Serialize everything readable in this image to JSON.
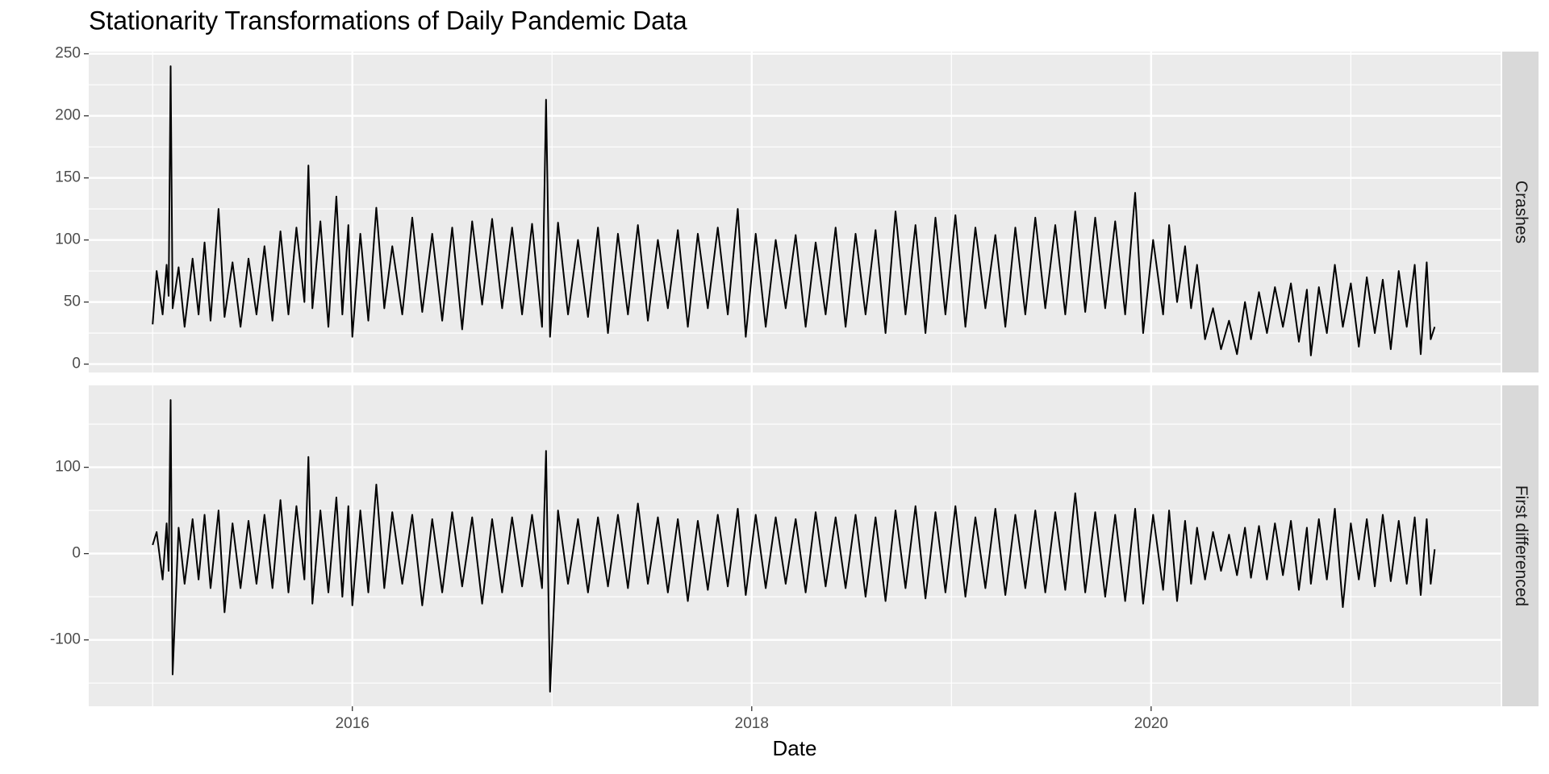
{
  "chart_data": [
    {
      "type": "line",
      "title": "Stationarity Transformations of Daily Pandemic Data",
      "facet_label": "Crashes",
      "color": "#000000",
      "grid": true,
      "xlim": [
        2014.68,
        2021.75
      ],
      "ylim": [
        -6.75,
        251.75
      ],
      "yticks": [
        0,
        50,
        100,
        150,
        200,
        250
      ],
      "minor_yticks": [
        25,
        75,
        125,
        175,
        225
      ],
      "x": [
        2015.0,
        2015.02,
        2015.05,
        2015.07,
        2015.08,
        2015.09,
        2015.1,
        2015.13,
        2015.16,
        2015.2,
        2015.23,
        2015.26,
        2015.29,
        2015.33,
        2015.36,
        2015.4,
        2015.44,
        2015.48,
        2015.52,
        2015.56,
        2015.6,
        2015.64,
        2015.68,
        2015.72,
        2015.76,
        2015.78,
        2015.8,
        2015.84,
        2015.88,
        2015.92,
        2015.95,
        2015.98,
        2016.0,
        2016.04,
        2016.08,
        2016.12,
        2016.16,
        2016.2,
        2016.25,
        2016.3,
        2016.35,
        2016.4,
        2016.45,
        2016.5,
        2016.55,
        2016.6,
        2016.65,
        2016.7,
        2016.75,
        2016.8,
        2016.85,
        2016.9,
        2016.95,
        2016.97,
        2016.99,
        2017.03,
        2017.08,
        2017.13,
        2017.18,
        2017.23,
        2017.28,
        2017.33,
        2017.38,
        2017.43,
        2017.48,
        2017.53,
        2017.58,
        2017.63,
        2017.68,
        2017.73,
        2017.78,
        2017.83,
        2017.88,
        2017.93,
        2017.97,
        2018.02,
        2018.07,
        2018.12,
        2018.17,
        2018.22,
        2018.27,
        2018.32,
        2018.37,
        2018.42,
        2018.47,
        2018.52,
        2018.57,
        2018.62,
        2018.67,
        2018.72,
        2018.77,
        2018.82,
        2018.87,
        2018.92,
        2018.97,
        2019.02,
        2019.07,
        2019.12,
        2019.17,
        2019.22,
        2019.27,
        2019.32,
        2019.37,
        2019.42,
        2019.47,
        2019.52,
        2019.57,
        2019.62,
        2019.67,
        2019.72,
        2019.77,
        2019.82,
        2019.87,
        2019.92,
        2019.96,
        2020.01,
        2020.06,
        2020.09,
        2020.13,
        2020.17,
        2020.2,
        2020.23,
        2020.27,
        2020.31,
        2020.35,
        2020.39,
        2020.43,
        2020.47,
        2020.5,
        2020.54,
        2020.58,
        2020.62,
        2020.66,
        2020.7,
        2020.74,
        2020.78,
        2020.8,
        2020.84,
        2020.88,
        2020.92,
        2020.96,
        2021.0,
        2021.04,
        2021.08,
        2021.12,
        2021.16,
        2021.2,
        2021.24,
        2021.28,
        2021.32,
        2021.35,
        2021.38,
        2021.4,
        2021.42
      ],
      "values": [
        32,
        75,
        40,
        80,
        55,
        240,
        45,
        78,
        30,
        85,
        40,
        98,
        35,
        125,
        38,
        82,
        30,
        85,
        40,
        95,
        35,
        107,
        40,
        110,
        50,
        160,
        45,
        115,
        30,
        135,
        40,
        112,
        22,
        105,
        35,
        126,
        45,
        95,
        40,
        118,
        42,
        105,
        35,
        110,
        28,
        115,
        48,
        117,
        45,
        110,
        40,
        113,
        30,
        213,
        22,
        114,
        40,
        100,
        38,
        110,
        25,
        105,
        40,
        112,
        35,
        100,
        45,
        108,
        30,
        105,
        45,
        110,
        40,
        125,
        22,
        105,
        30,
        100,
        45,
        104,
        30,
        98,
        40,
        110,
        30,
        105,
        40,
        108,
        25,
        123,
        40,
        112,
        25,
        118,
        40,
        120,
        30,
        110,
        45,
        104,
        30,
        110,
        40,
        118,
        45,
        112,
        40,
        123,
        42,
        118,
        45,
        115,
        40,
        138,
        25,
        100,
        40,
        112,
        50,
        95,
        45,
        80,
        20,
        45,
        12,
        35,
        8,
        50,
        20,
        58,
        25,
        62,
        30,
        65,
        18,
        60,
        7,
        62,
        25,
        80,
        30,
        65,
        14,
        70,
        25,
        68,
        12,
        75,
        30,
        80,
        8,
        82,
        20,
        30
      ]
    },
    {
      "type": "line",
      "facet_label": "First differenced",
      "x_label": "Date",
      "color": "#000000",
      "grid": true,
      "xlim": [
        2014.68,
        2021.75
      ],
      "xticks": [
        2016,
        2018,
        2020
      ],
      "minor_xticks": [
        2015,
        2017,
        2019,
        2021
      ],
      "ylim": [
        -176.9,
        194.9
      ],
      "yticks": [
        -100,
        0,
        100
      ],
      "minor_yticks": [
        -150,
        -50,
        50,
        150
      ],
      "x": [
        2015.0,
        2015.02,
        2015.05,
        2015.07,
        2015.08,
        2015.09,
        2015.1,
        2015.13,
        2015.16,
        2015.2,
        2015.23,
        2015.26,
        2015.29,
        2015.33,
        2015.36,
        2015.4,
        2015.44,
        2015.48,
        2015.52,
        2015.56,
        2015.6,
        2015.64,
        2015.68,
        2015.72,
        2015.76,
        2015.78,
        2015.8,
        2015.84,
        2015.88,
        2015.92,
        2015.95,
        2015.98,
        2016.0,
        2016.04,
        2016.08,
        2016.12,
        2016.16,
        2016.2,
        2016.25,
        2016.3,
        2016.35,
        2016.4,
        2016.45,
        2016.5,
        2016.55,
        2016.6,
        2016.65,
        2016.7,
        2016.75,
        2016.8,
        2016.85,
        2016.9,
        2016.95,
        2016.97,
        2016.99,
        2017.03,
        2017.08,
        2017.13,
        2017.18,
        2017.23,
        2017.28,
        2017.33,
        2017.38,
        2017.43,
        2017.48,
        2017.53,
        2017.58,
        2017.63,
        2017.68,
        2017.73,
        2017.78,
        2017.83,
        2017.88,
        2017.93,
        2017.97,
        2018.02,
        2018.07,
        2018.12,
        2018.17,
        2018.22,
        2018.27,
        2018.32,
        2018.37,
        2018.42,
        2018.47,
        2018.52,
        2018.57,
        2018.62,
        2018.67,
        2018.72,
        2018.77,
        2018.82,
        2018.87,
        2018.92,
        2018.97,
        2019.02,
        2019.07,
        2019.12,
        2019.17,
        2019.22,
        2019.27,
        2019.32,
        2019.37,
        2019.42,
        2019.47,
        2019.52,
        2019.57,
        2019.62,
        2019.67,
        2019.72,
        2019.77,
        2019.82,
        2019.87,
        2019.92,
        2019.96,
        2020.01,
        2020.06,
        2020.09,
        2020.13,
        2020.17,
        2020.2,
        2020.23,
        2020.27,
        2020.31,
        2020.35,
        2020.39,
        2020.43,
        2020.47,
        2020.5,
        2020.54,
        2020.58,
        2020.62,
        2020.66,
        2020.7,
        2020.74,
        2020.78,
        2020.8,
        2020.84,
        2020.88,
        2020.92,
        2020.96,
        2021.0,
        2021.04,
        2021.08,
        2021.12,
        2021.16,
        2021.2,
        2021.24,
        2021.28,
        2021.32,
        2021.35,
        2021.38,
        2021.4,
        2021.42
      ],
      "values": [
        10,
        25,
        -30,
        35,
        -20,
        178,
        -140,
        30,
        -35,
        40,
        -30,
        45,
        -40,
        50,
        -68,
        35,
        -40,
        38,
        -35,
        45,
        -40,
        62,
        -45,
        55,
        -30,
        112,
        -58,
        50,
        -45,
        65,
        -50,
        55,
        -60,
        50,
        -45,
        80,
        -40,
        48,
        -35,
        45,
        -60,
        40,
        -45,
        48,
        -38,
        42,
        -58,
        40,
        -45,
        42,
        -38,
        45,
        -40,
        119,
        -160,
        50,
        -35,
        40,
        -45,
        42,
        -38,
        45,
        -40,
        58,
        -35,
        42,
        -45,
        40,
        -55,
        38,
        -42,
        45,
        -38,
        52,
        -48,
        45,
        -40,
        42,
        -35,
        40,
        -45,
        48,
        -38,
        42,
        -40,
        45,
        -50,
        42,
        -55,
        50,
        -40,
        55,
        -52,
        48,
        -45,
        55,
        -50,
        42,
        -40,
        52,
        -48,
        45,
        -40,
        50,
        -45,
        48,
        -42,
        70,
        -45,
        48,
        -50,
        45,
        -55,
        52,
        -58,
        45,
        -42,
        50,
        -55,
        38,
        -35,
        30,
        -30,
        25,
        -20,
        22,
        -25,
        30,
        -28,
        32,
        -30,
        35,
        -25,
        38,
        -42,
        30,
        -35,
        40,
        -30,
        52,
        -62,
        35,
        -30,
        40,
        -38,
        45,
        -32,
        38,
        -35,
        42,
        -48,
        40,
        -35,
        5
      ]
    }
  ]
}
